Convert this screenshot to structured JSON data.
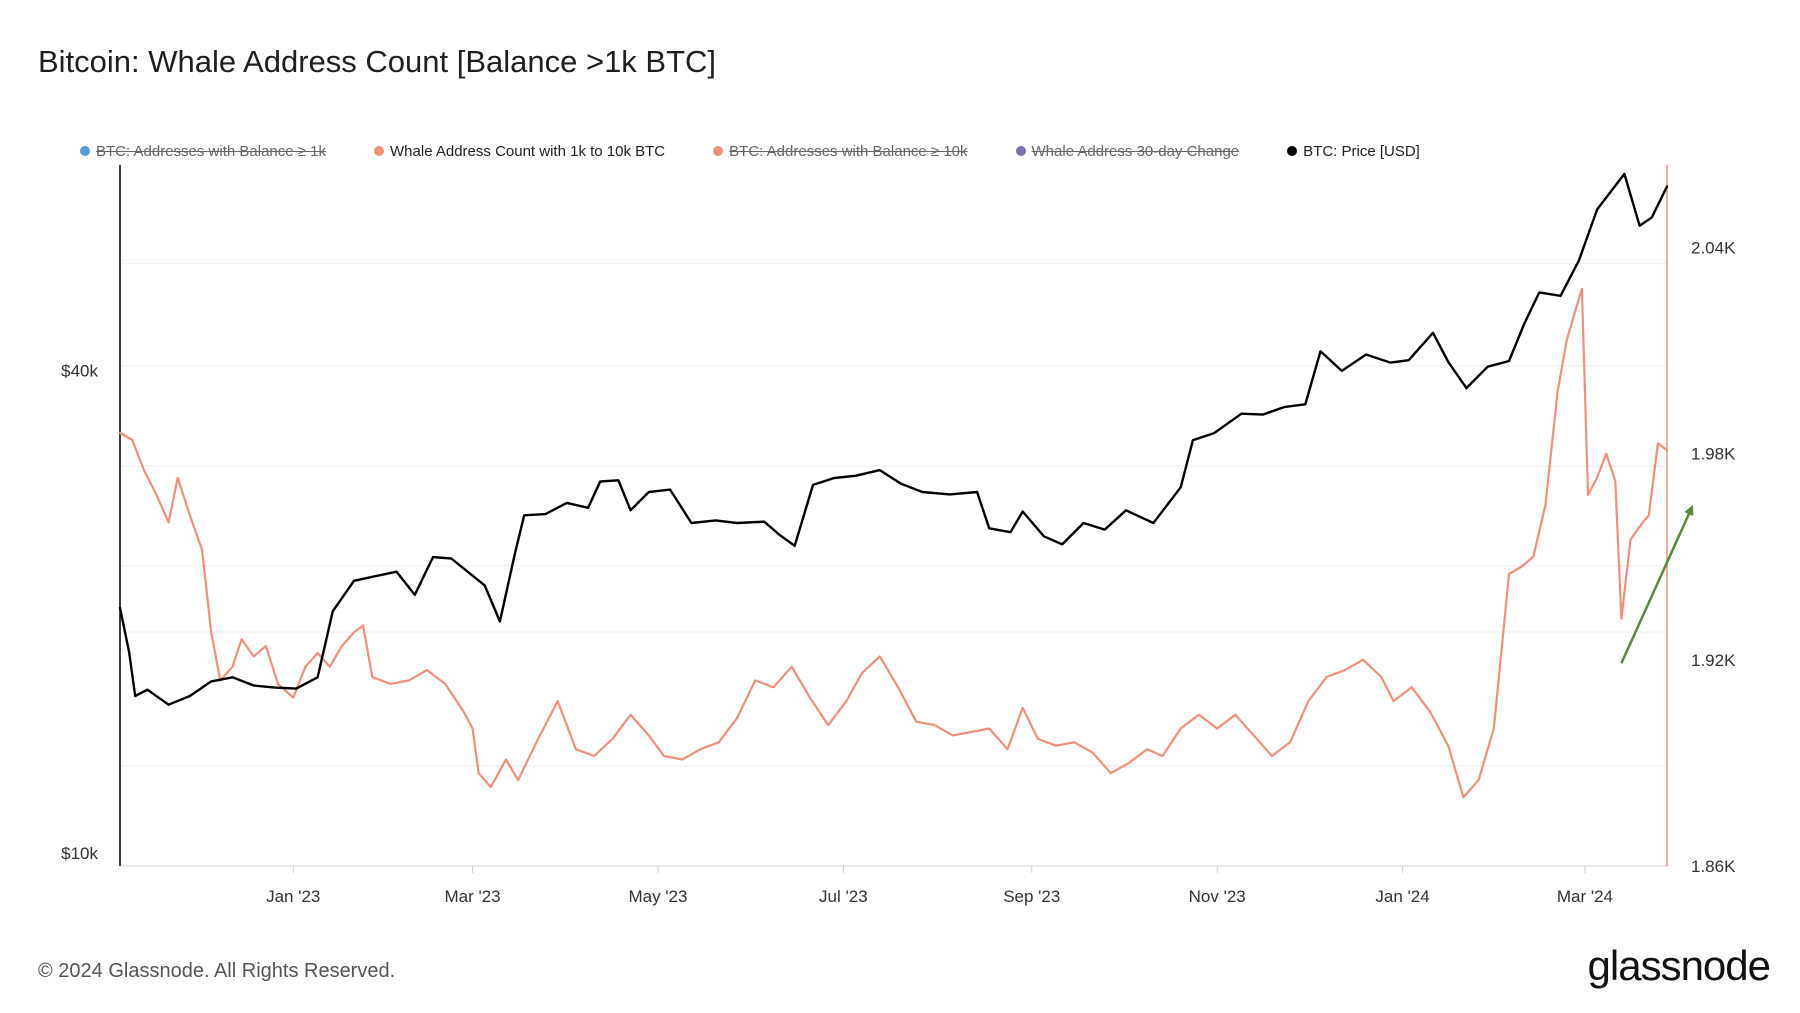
{
  "title": "Bitcoin: Whale Address Count [Balance >1k BTC]",
  "footer": {
    "copyright": "© 2024 Glassnode. All Rights Reserved.",
    "brand": "glassnode"
  },
  "chart_data": {
    "type": "line",
    "title": "Bitcoin: Whale Address Count [Balance >1k BTC]",
    "x_range": [
      "2022-11-05",
      "2024-03-28"
    ],
    "x_ticks": [
      {
        "label": "Jan '23",
        "date": "2023-01-01"
      },
      {
        "label": "Mar '23",
        "date": "2023-03-01"
      },
      {
        "label": "May '23",
        "date": "2023-05-01"
      },
      {
        "label": "Jul '23",
        "date": "2023-07-01"
      },
      {
        "label": "Sep '23",
        "date": "2023-09-01"
      },
      {
        "label": "Nov '23",
        "date": "2023-11-01"
      },
      {
        "label": "Jan '24",
        "date": "2024-01-01"
      },
      {
        "label": "Mar '24",
        "date": "2024-03-01"
      }
    ],
    "y_left": {
      "scale": "log",
      "range": [
        10000,
        75000
      ],
      "ticks": [
        {
          "label": "$10k",
          "value": 10000
        },
        {
          "label": "$40k",
          "value": 40000
        }
      ]
    },
    "y_right": {
      "scale": "linear",
      "range": [
        1860,
        2064
      ],
      "ticks": [
        {
          "label": "1.86K",
          "value": 1860
        },
        {
          "label": "1.92K",
          "value": 1920
        },
        {
          "label": "1.98K",
          "value": 1980
        },
        {
          "label": "2.04K",
          "value": 2040
        }
      ]
    },
    "legend": [
      {
        "name": "BTC: Addresses with Balance ≥ 1k",
        "color": "#5b9bd5",
        "visible": false
      },
      {
        "name": "Whale Address Count with 1k to 10k BTC",
        "color": "#f0907a",
        "visible": true
      },
      {
        "name": "BTC: Addresses with Balance ≥ 10k",
        "color": "#f0907a",
        "visible": false
      },
      {
        "name": "Whale Address 30-day Change",
        "color": "#7b6fb0",
        "visible": false
      },
      {
        "name": "BTC: Price [USD]",
        "color": "#000000",
        "visible": true
      }
    ],
    "series": [
      {
        "name": "BTC: Price [USD]",
        "axis": "left",
        "color": "#000000",
        "points": [
          [
            "2022-11-05",
            21000
          ],
          [
            "2022-11-08",
            18500
          ],
          [
            "2022-11-10",
            16300
          ],
          [
            "2022-11-14",
            16600
          ],
          [
            "2022-11-21",
            15900
          ],
          [
            "2022-11-28",
            16300
          ],
          [
            "2022-12-05",
            17000
          ],
          [
            "2022-12-12",
            17200
          ],
          [
            "2022-12-19",
            16800
          ],
          [
            "2022-12-26",
            16700
          ],
          [
            "2023-01-02",
            16650
          ],
          [
            "2023-01-09",
            17200
          ],
          [
            "2023-01-14",
            20800
          ],
          [
            "2023-01-21",
            22700
          ],
          [
            "2023-01-28",
            23000
          ],
          [
            "2023-02-04",
            23300
          ],
          [
            "2023-02-10",
            21800
          ],
          [
            "2023-02-16",
            24300
          ],
          [
            "2023-02-22",
            24200
          ],
          [
            "2023-02-28",
            23200
          ],
          [
            "2023-03-05",
            22400
          ],
          [
            "2023-03-10",
            20200
          ],
          [
            "2023-03-15",
            24600
          ],
          [
            "2023-03-18",
            27400
          ],
          [
            "2023-03-25",
            27500
          ],
          [
            "2023-04-01",
            28400
          ],
          [
            "2023-04-08",
            28000
          ],
          [
            "2023-04-12",
            30200
          ],
          [
            "2023-04-18",
            30300
          ],
          [
            "2023-04-22",
            27800
          ],
          [
            "2023-04-28",
            29300
          ],
          [
            "2023-05-05",
            29500
          ],
          [
            "2023-05-12",
            26800
          ],
          [
            "2023-05-20",
            27000
          ],
          [
            "2023-05-27",
            26800
          ],
          [
            "2023-06-05",
            26900
          ],
          [
            "2023-06-10",
            25900
          ],
          [
            "2023-06-15",
            25100
          ],
          [
            "2023-06-21",
            29900
          ],
          [
            "2023-06-28",
            30500
          ],
          [
            "2023-07-05",
            30700
          ],
          [
            "2023-07-13",
            31200
          ],
          [
            "2023-07-20",
            30000
          ],
          [
            "2023-07-27",
            29300
          ],
          [
            "2023-08-05",
            29100
          ],
          [
            "2023-08-14",
            29300
          ],
          [
            "2023-08-18",
            26400
          ],
          [
            "2023-08-25",
            26100
          ],
          [
            "2023-08-29",
            27700
          ],
          [
            "2023-09-05",
            25800
          ],
          [
            "2023-09-11",
            25200
          ],
          [
            "2023-09-18",
            26800
          ],
          [
            "2023-09-25",
            26300
          ],
          [
            "2023-10-02",
            27800
          ],
          [
            "2023-10-11",
            26800
          ],
          [
            "2023-10-20",
            29700
          ],
          [
            "2023-10-24",
            34000
          ],
          [
            "2023-10-31",
            34700
          ],
          [
            "2023-11-09",
            36700
          ],
          [
            "2023-11-16",
            36600
          ],
          [
            "2023-11-23",
            37400
          ],
          [
            "2023-11-30",
            37700
          ],
          [
            "2023-12-05",
            43900
          ],
          [
            "2023-12-12",
            41500
          ],
          [
            "2023-12-20",
            43500
          ],
          [
            "2023-12-28",
            42500
          ],
          [
            "2024-01-03",
            42800
          ],
          [
            "2024-01-11",
            46300
          ],
          [
            "2024-01-16",
            42600
          ],
          [
            "2024-01-22",
            39500
          ],
          [
            "2024-01-29",
            42000
          ],
          [
            "2024-02-05",
            42700
          ],
          [
            "2024-02-10",
            47500
          ],
          [
            "2024-02-15",
            52000
          ],
          [
            "2024-02-22",
            51500
          ],
          [
            "2024-02-28",
            57000
          ],
          [
            "2024-03-05",
            66000
          ],
          [
            "2024-03-08",
            68300
          ],
          [
            "2024-03-14",
            73100
          ],
          [
            "2024-03-19",
            63000
          ],
          [
            "2024-03-23",
            64500
          ],
          [
            "2024-03-28",
            70500
          ]
        ]
      },
      {
        "name": "Whale Address Count with 1k to 10k BTC",
        "axis": "right",
        "color": "#f0907a",
        "points": [
          [
            "2022-11-05",
            1986
          ],
          [
            "2022-11-09",
            1984
          ],
          [
            "2022-11-13",
            1975
          ],
          [
            "2022-11-17",
            1968
          ],
          [
            "2022-11-21",
            1960
          ],
          [
            "2022-11-24",
            1973
          ],
          [
            "2022-11-28",
            1962
          ],
          [
            "2022-12-02",
            1952
          ],
          [
            "2022-12-05",
            1928
          ],
          [
            "2022-12-08",
            1914
          ],
          [
            "2022-12-12",
            1918
          ],
          [
            "2022-12-15",
            1926
          ],
          [
            "2022-12-19",
            1921
          ],
          [
            "2022-12-23",
            1924
          ],
          [
            "2022-12-27",
            1913
          ],
          [
            "2023-01-01",
            1909
          ],
          [
            "2023-01-05",
            1918
          ],
          [
            "2023-01-09",
            1922
          ],
          [
            "2023-01-13",
            1918
          ],
          [
            "2023-01-17",
            1924
          ],
          [
            "2023-01-21",
            1928
          ],
          [
            "2023-01-24",
            1930
          ],
          [
            "2023-01-27",
            1915
          ],
          [
            "2023-02-02",
            1913
          ],
          [
            "2023-02-08",
            1914
          ],
          [
            "2023-02-14",
            1917
          ],
          [
            "2023-02-20",
            1913
          ],
          [
            "2023-02-26",
            1905
          ],
          [
            "2023-03-01",
            1900
          ],
          [
            "2023-03-03",
            1887
          ],
          [
            "2023-03-07",
            1883
          ],
          [
            "2023-03-12",
            1891
          ],
          [
            "2023-03-16",
            1885
          ],
          [
            "2023-03-22",
            1896
          ],
          [
            "2023-03-29",
            1908
          ],
          [
            "2023-04-04",
            1894
          ],
          [
            "2023-04-10",
            1892
          ],
          [
            "2023-04-16",
            1897
          ],
          [
            "2023-04-22",
            1904
          ],
          [
            "2023-04-28",
            1898
          ],
          [
            "2023-05-03",
            1892
          ],
          [
            "2023-05-09",
            1891
          ],
          [
            "2023-05-15",
            1894
          ],
          [
            "2023-05-21",
            1896
          ],
          [
            "2023-05-27",
            1903
          ],
          [
            "2023-06-02",
            1914
          ],
          [
            "2023-06-08",
            1912
          ],
          [
            "2023-06-14",
            1918
          ],
          [
            "2023-06-20",
            1909
          ],
          [
            "2023-06-26",
            1901
          ],
          [
            "2023-07-02",
            1908
          ],
          [
            "2023-07-07",
            1916
          ],
          [
            "2023-07-13",
            1921
          ],
          [
            "2023-07-19",
            1912
          ],
          [
            "2023-07-25",
            1902
          ],
          [
            "2023-07-31",
            1901
          ],
          [
            "2023-08-06",
            1898
          ],
          [
            "2023-08-12",
            1899
          ],
          [
            "2023-08-18",
            1900
          ],
          [
            "2023-08-24",
            1894
          ],
          [
            "2023-08-29",
            1906
          ],
          [
            "2023-09-03",
            1897
          ],
          [
            "2023-09-09",
            1895
          ],
          [
            "2023-09-15",
            1896
          ],
          [
            "2023-09-21",
            1893
          ],
          [
            "2023-09-27",
            1887
          ],
          [
            "2023-10-03",
            1890
          ],
          [
            "2023-10-09",
            1894
          ],
          [
            "2023-10-14",
            1892
          ],
          [
            "2023-10-20",
            1900
          ],
          [
            "2023-10-26",
            1904
          ],
          [
            "2023-11-01",
            1900
          ],
          [
            "2023-11-07",
            1904
          ],
          [
            "2023-11-13",
            1898
          ],
          [
            "2023-11-19",
            1892
          ],
          [
            "2023-11-25",
            1896
          ],
          [
            "2023-12-01",
            1908
          ],
          [
            "2023-12-07",
            1915
          ],
          [
            "2023-12-13",
            1917
          ],
          [
            "2023-12-19",
            1920
          ],
          [
            "2023-12-25",
            1915
          ],
          [
            "2023-12-29",
            1908
          ],
          [
            "2024-01-04",
            1912
          ],
          [
            "2024-01-10",
            1905
          ],
          [
            "2024-01-16",
            1895
          ],
          [
            "2024-01-21",
            1880
          ],
          [
            "2024-01-26",
            1885
          ],
          [
            "2024-01-31",
            1900
          ],
          [
            "2024-02-05",
            1945
          ],
          [
            "2024-02-09",
            1947
          ],
          [
            "2024-02-13",
            1950
          ],
          [
            "2024-02-17",
            1965
          ],
          [
            "2024-02-21",
            1998
          ],
          [
            "2024-02-24",
            2013
          ],
          [
            "2024-02-27",
            2022
          ],
          [
            "2024-02-29",
            2028
          ],
          [
            "2024-03-02",
            1968
          ],
          [
            "2024-03-05",
            1973
          ],
          [
            "2024-03-08",
            1980
          ],
          [
            "2024-03-11",
            1972
          ],
          [
            "2024-03-13",
            1932
          ],
          [
            "2024-03-16",
            1955
          ],
          [
            "2024-03-20",
            1960
          ],
          [
            "2024-03-22",
            1962
          ],
          [
            "2024-03-25",
            1983
          ],
          [
            "2024-03-28",
            1981
          ]
        ]
      }
    ],
    "annotations": [
      {
        "type": "arrow",
        "color": "#5a8a3a",
        "from": [
          "2024-03-13",
          1919
        ],
        "to": [
          "2024-04-05",
          1964
        ]
      }
    ]
  }
}
